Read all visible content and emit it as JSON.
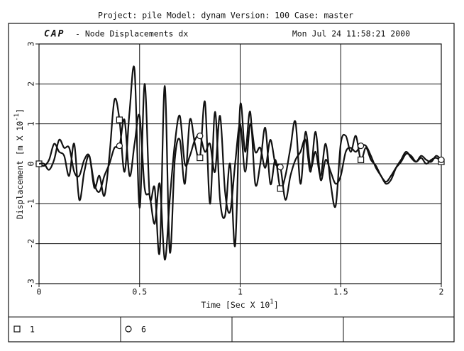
{
  "header": "Project: pile  Model: dynam  Version: 100  Case: master",
  "logo": "CAP",
  "chart_data": {
    "type": "line",
    "title": "- Node Displacements dx",
    "date": "Mon Jul 24 11:58:21 2000",
    "xlabel": {
      "text": "Time [Sec X 10",
      "exponent": "1",
      "close": "]"
    },
    "ylabel": {
      "text": "Displacement [m X 10",
      "exponent": "-1",
      "close": "]"
    },
    "xlim": [
      0,
      2
    ],
    "xticks": [
      0,
      0.5,
      1,
      1.5,
      2
    ],
    "ylim": [
      -3,
      3
    ],
    "yticks": [
      -3,
      -2,
      -1,
      0,
      1,
      2,
      3
    ],
    "grid": true,
    "x": [
      0,
      0.025,
      0.05,
      0.075,
      0.1,
      0.125,
      0.15,
      0.175,
      0.2,
      0.225,
      0.25,
      0.275,
      0.3,
      0.325,
      0.35,
      0.375,
      0.4,
      0.425,
      0.45,
      0.475,
      0.5,
      0.525,
      0.55,
      0.575,
      0.6,
      0.625,
      0.65,
      0.675,
      0.7,
      0.725,
      0.75,
      0.775,
      0.8,
      0.825,
      0.85,
      0.875,
      0.9,
      0.925,
      0.95,
      0.975,
      1,
      1.025,
      1.05,
      1.075,
      1.1,
      1.125,
      1.15,
      1.175,
      1.2,
      1.225,
      1.25,
      1.275,
      1.3,
      1.325,
      1.35,
      1.375,
      1.4,
      1.425,
      1.45,
      1.475,
      1.5,
      1.525,
      1.55,
      1.575,
      1.6,
      1.625,
      1.65,
      1.675,
      1.7,
      1.725,
      1.75,
      1.775,
      1.8,
      1.825,
      1.85,
      1.875,
      1.9,
      1.925,
      1.95,
      1.975,
      2
    ],
    "series": [
      {
        "name": "1",
        "marker": "square",
        "color": "#111111",
        "values": [
          0,
          -0.05,
          0.1,
          0.5,
          0.3,
          0.2,
          -0.3,
          0.5,
          -0.9,
          -0.2,
          0.2,
          -0.6,
          -0.3,
          -0.8,
          0.2,
          1.6,
          1.1,
          -0.2,
          1.3,
          2.35,
          -1.1,
          2.0,
          -0.8,
          -0.6,
          -2.2,
          1.95,
          -2.2,
          0.1,
          0.6,
          -0.5,
          1.1,
          0.5,
          0.15,
          1.55,
          -1.0,
          1.3,
          -0.9,
          -1.3,
          0.0,
          -2.05,
          1.45,
          0.3,
          1.3,
          -0.5,
          0.0,
          0.9,
          -0.5,
          0.1,
          -0.62,
          -0.3,
          0.4,
          1.05,
          -0.5,
          0.8,
          -0.1,
          0.3,
          -0.3,
          0.5,
          -0.5,
          -1.05,
          0.5,
          0.7,
          0.3,
          0.7,
          0.1,
          0.4,
          0.1,
          -0.05,
          -0.3,
          -0.45,
          -0.3,
          -0.1,
          0.05,
          0.25,
          0.2,
          0.05,
          0.15,
          0.0,
          0.1,
          0.15,
          0.05
        ]
      },
      {
        "name": "6",
        "marker": "circle",
        "color": "#111111",
        "values": [
          0,
          0.0,
          -0.15,
          0.1,
          0.6,
          0.4,
          0.4,
          -0.2,
          -0.3,
          0.1,
          0.2,
          -0.5,
          -0.7,
          -0.3,
          0.0,
          0.4,
          0.45,
          1.1,
          -0.3,
          0.5,
          1.2,
          -0.6,
          -0.8,
          -1.5,
          -0.5,
          -2.4,
          -0.9,
          0.5,
          1.2,
          0.0,
          0.2,
          0.6,
          0.7,
          0.3,
          0.5,
          -0.2,
          1.2,
          -0.7,
          -1.2,
          0.0,
          1.0,
          -0.2,
          1.0,
          0.3,
          0.4,
          -0.1,
          0.6,
          0.0,
          -0.08,
          -0.9,
          -0.3,
          0.1,
          0.3,
          0.6,
          -0.2,
          0.8,
          -0.4,
          0.1,
          -0.2,
          -0.5,
          -0.3,
          0.3,
          0.4,
          0.3,
          0.45,
          0.45,
          0.2,
          -0.1,
          -0.3,
          -0.5,
          -0.4,
          -0.1,
          0.1,
          0.3,
          0.15,
          0.05,
          0.2,
          0.1,
          0.05,
          0.2,
          0.1
        ]
      }
    ]
  }
}
